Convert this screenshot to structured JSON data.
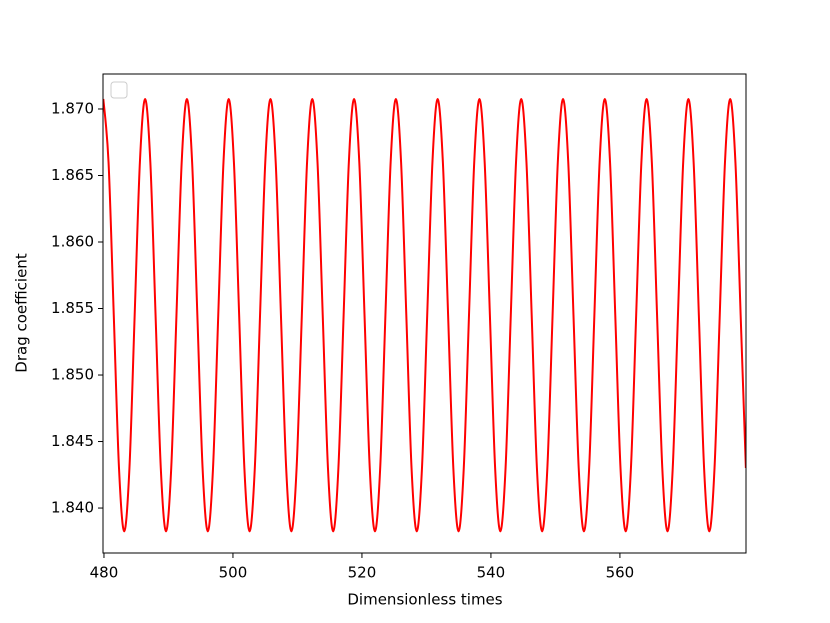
{
  "chart_data": {
    "type": "line",
    "xlabel": "Dimensionless times",
    "ylabel": "Drag coefficient",
    "color": "#ff0000",
    "x": [
      479.9,
      480.71,
      481.52,
      482.33,
      483.14,
      483.95,
      484.76,
      485.57,
      486.38,
      487.19,
      488,
      488.81,
      489.62,
      490.43,
      491.24,
      492.05,
      492.86,
      493.67,
      494.48,
      495.29,
      496.1,
      496.91,
      497.72,
      498.53,
      499.34,
      500.15,
      500.96,
      501.77,
      502.58,
      503.39,
      504.2,
      505.01,
      505.82,
      506.63,
      507.44,
      508.25,
      509.06,
      509.87,
      510.68,
      511.49,
      512.3,
      513.11,
      513.92,
      514.73,
      515.54,
      516.35,
      517.16,
      517.97,
      518.78,
      519.59,
      520.4,
      521.21,
      522.02,
      522.83,
      523.64,
      524.45,
      525.26,
      526.07,
      526.88,
      527.69,
      528.5,
      529.31,
      530.12,
      530.93,
      531.74,
      532.55,
      533.36,
      534.17,
      534.98,
      535.79,
      536.6,
      537.41,
      538.22,
      539.03,
      539.84,
      540.65,
      541.46,
      542.27,
      543.08,
      543.89,
      544.7,
      545.51,
      546.32,
      547.13,
      547.94,
      548.75,
      549.56,
      550.37,
      551.18,
      551.99,
      552.8,
      553.61,
      554.42,
      555.23,
      556.04,
      556.85,
      557.66,
      558.47,
      559.28,
      560.09,
      560.9,
      561.71,
      562.52,
      563.33,
      564.14,
      564.95,
      565.76,
      566.57,
      567.38,
      568.19,
      569,
      569.81,
      570.62,
      571.43,
      572.24,
      573.05,
      573.86,
      574.67,
      575.48,
      576.29,
      577.1,
      577.91,
      578.72,
      579.53
    ],
    "values": [
      1.87075,
      1.86599,
      1.8545,
      1.84301,
      1.83825,
      1.84301,
      1.8545,
      1.86599,
      1.87075,
      1.86599,
      1.8545,
      1.84301,
      1.83825,
      1.84301,
      1.8545,
      1.86599,
      1.87075,
      1.86599,
      1.8545,
      1.84301,
      1.83825,
      1.84301,
      1.8545,
      1.86599,
      1.87075,
      1.86599,
      1.8545,
      1.84301,
      1.83825,
      1.84301,
      1.8545,
      1.86599,
      1.87075,
      1.86599,
      1.8545,
      1.84301,
      1.83825,
      1.84301,
      1.8545,
      1.86599,
      1.87075,
      1.86599,
      1.8545,
      1.84301,
      1.83825,
      1.84301,
      1.8545,
      1.86599,
      1.87075,
      1.86599,
      1.8545,
      1.84301,
      1.83825,
      1.84301,
      1.8545,
      1.86599,
      1.87075,
      1.86599,
      1.8545,
      1.84301,
      1.83825,
      1.84301,
      1.8545,
      1.86599,
      1.87075,
      1.86599,
      1.8545,
      1.84301,
      1.83825,
      1.84301,
      1.8545,
      1.86599,
      1.87075,
      1.86599,
      1.8545,
      1.84301,
      1.83825,
      1.84301,
      1.8545,
      1.86599,
      1.87075,
      1.86599,
      1.8545,
      1.84301,
      1.83825,
      1.84301,
      1.8545,
      1.86599,
      1.87075,
      1.86599,
      1.8545,
      1.84301,
      1.83825,
      1.84301,
      1.8545,
      1.86599,
      1.87075,
      1.86599,
      1.8545,
      1.84301,
      1.83825,
      1.84301,
      1.8545,
      1.86599,
      1.87075,
      1.86599,
      1.8545,
      1.84301,
      1.83825,
      1.84301,
      1.8545,
      1.86599,
      1.87075,
      1.86599,
      1.8545,
      1.84301,
      1.83825,
      1.84301,
      1.8545,
      1.86599,
      1.87075,
      1.86599,
      1.8545,
      1.84301
    ],
    "xlim": [
      479.85,
      579.55
    ],
    "ylim": [
      1.83662,
      1.87263
    ],
    "xticks": [
      480,
      500,
      520,
      540,
      560
    ],
    "yticks": [
      {
        "value": 1.84,
        "label": "1.840"
      },
      1.845,
      {
        "value": 1.85,
        "label": "1.850"
      },
      1.855,
      {
        "value": 1.86,
        "label": "1.860"
      },
      1.865,
      {
        "value": 1.87,
        "label": "1.870"
      }
    ]
  }
}
